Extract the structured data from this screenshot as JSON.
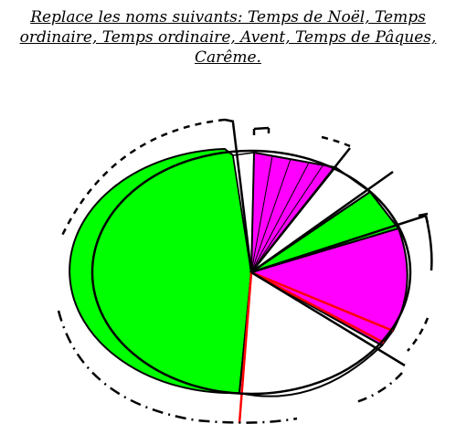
{
  "instruction": {
    "line1": "Replace les noms suivants: Temps de Noël, Temps",
    "line2": "ordinaire, Temps ordinaire, Avent, Temps de Pâques,",
    "line3": "Carême."
  },
  "colors": {
    "green": "#00ff00",
    "magenta": "#ff00ff",
    "white": "#ffffff",
    "red_line": "#ff0000",
    "outline": "#000000"
  },
  "segments": [
    {
      "name": "top-magenta-sector",
      "fill": "magenta",
      "has_hatching": true
    },
    {
      "name": "small-white-sector",
      "fill": "white"
    },
    {
      "name": "small-green-sector",
      "fill": "green"
    },
    {
      "name": "right-magenta-sector",
      "fill": "magenta"
    },
    {
      "name": "bottom-white-sector",
      "fill": "white",
      "has_red_lines": true
    },
    {
      "name": "large-green-sector",
      "fill": "green"
    },
    {
      "name": "top-white-sliver",
      "fill": "white"
    }
  ]
}
